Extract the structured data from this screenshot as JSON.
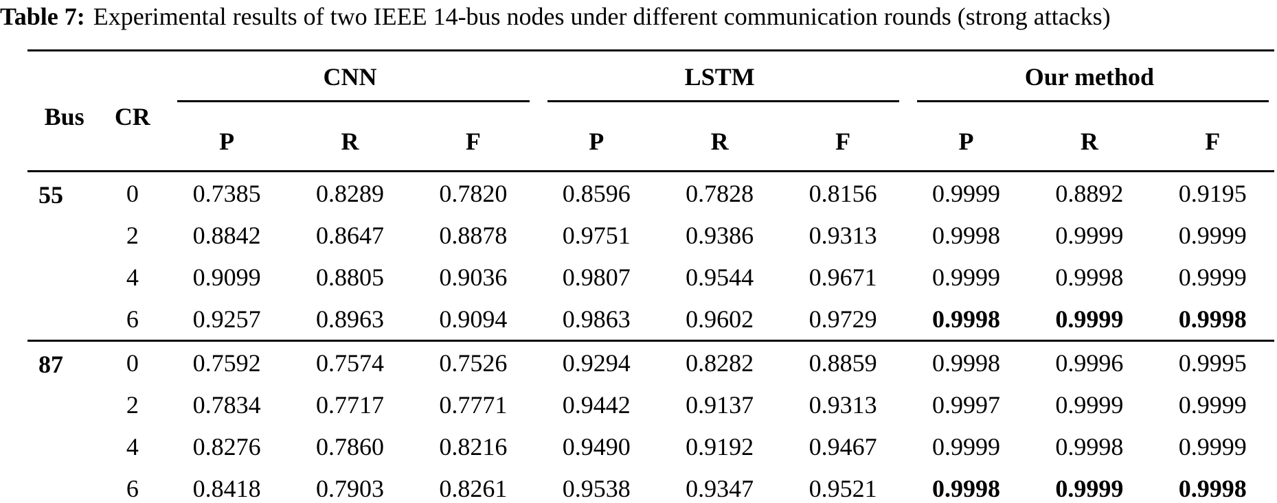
{
  "title": {
    "label": "Table 7:",
    "text": "Experimental results of two IEEE 14-bus nodes under different communication rounds (strong attacks)"
  },
  "table": {
    "col_headers": {
      "bus": "Bus",
      "cr": "CR"
    },
    "groups": [
      {
        "label": "CNN"
      },
      {
        "label": "LSTM"
      },
      {
        "label": "Our method"
      }
    ],
    "metrics": [
      "P",
      "R",
      "F"
    ],
    "blocks": [
      {
        "bus": "55",
        "rows": [
          {
            "cr": "0",
            "cnn": [
              "0.7385",
              "0.8289",
              "0.7820"
            ],
            "lstm": [
              "0.8596",
              "0.7828",
              "0.8156"
            ],
            "our": [
              "0.9999",
              "0.8892",
              "0.9195"
            ],
            "our_bold": false
          },
          {
            "cr": "2",
            "cnn": [
              "0.8842",
              "0.8647",
              "0.8878"
            ],
            "lstm": [
              "0.9751",
              "0.9386",
              "0.9313"
            ],
            "our": [
              "0.9998",
              "0.9999",
              "0.9999"
            ],
            "our_bold": false
          },
          {
            "cr": "4",
            "cnn": [
              "0.9099",
              "0.8805",
              "0.9036"
            ],
            "lstm": [
              "0.9807",
              "0.9544",
              "0.9671"
            ],
            "our": [
              "0.9999",
              "0.9998",
              "0.9999"
            ],
            "our_bold": false
          },
          {
            "cr": "6",
            "cnn": [
              "0.9257",
              "0.8963",
              "0.9094"
            ],
            "lstm": [
              "0.9863",
              "0.9602",
              "0.9729"
            ],
            "our": [
              "0.9998",
              "0.9999",
              "0.9998"
            ],
            "our_bold": true
          }
        ]
      },
      {
        "bus": "87",
        "rows": [
          {
            "cr": "0",
            "cnn": [
              "0.7592",
              "0.7574",
              "0.7526"
            ],
            "lstm": [
              "0.9294",
              "0.8282",
              "0.8859"
            ],
            "our": [
              "0.9998",
              "0.9996",
              "0.9995"
            ],
            "our_bold": false
          },
          {
            "cr": "2",
            "cnn": [
              "0.7834",
              "0.7717",
              "0.7771"
            ],
            "lstm": [
              "0.9442",
              "0.9137",
              "0.9313"
            ],
            "our": [
              "0.9997",
              "0.9999",
              "0.9999"
            ],
            "our_bold": false
          },
          {
            "cr": "4",
            "cnn": [
              "0.8276",
              "0.7860",
              "0.8216"
            ],
            "lstm": [
              "0.9490",
              "0.9192",
              "0.9467"
            ],
            "our": [
              "0.9999",
              "0.9998",
              "0.9999"
            ],
            "our_bold": false
          },
          {
            "cr": "6",
            "cnn": [
              "0.8418",
              "0.7903",
              "0.8261"
            ],
            "lstm": [
              "0.9538",
              "0.9347",
              "0.9521"
            ],
            "our": [
              "0.9998",
              "0.9999",
              "0.9998"
            ],
            "our_bold": true
          }
        ]
      }
    ]
  }
}
